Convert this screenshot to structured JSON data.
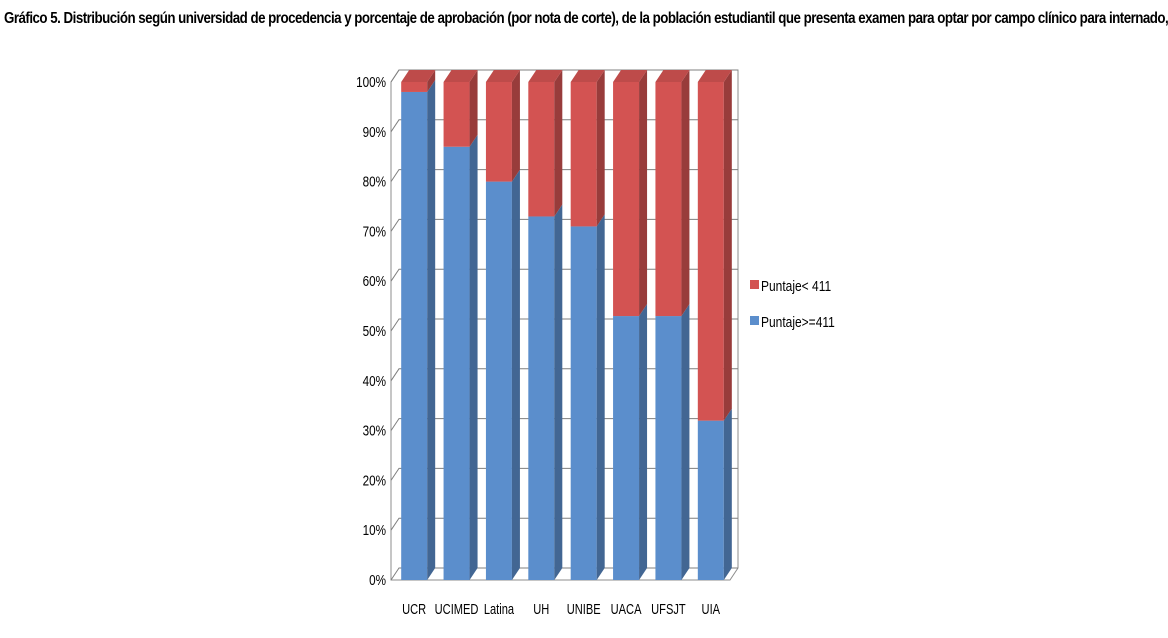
{
  "chart_data": {
    "type": "bar",
    "stacked": true,
    "percent_stacked": true,
    "three_d": true,
    "title": "Gráfico 5. Distribución según universidad de procedencia y porcentaje de aprobación (por nota de corte), de la población estudiantil que presenta examen para optar por campo clínico para internado,",
    "categories": [
      "UCR",
      "UCIMED",
      "Latina",
      "UH",
      "UNIBE",
      "UACA",
      "UFSJT",
      "UIA"
    ],
    "series": [
      {
        "name": "Puntaje>=411",
        "color": "#5B8ECC",
        "values": [
          98,
          87,
          80,
          73,
          71,
          53,
          53,
          32
        ]
      },
      {
        "name": "Puntaje< 411",
        "color": "#D35352",
        "values": [
          2,
          13,
          20,
          27,
          29,
          47,
          47,
          68
        ]
      }
    ],
    "y_tick_labels": [
      "0%",
      "10%",
      "20%",
      "30%",
      "40%",
      "50%",
      "60%",
      "70%",
      "80%",
      "90%",
      "100%"
    ],
    "ylim": [
      0,
      100
    ],
    "xlabel": "",
    "ylabel": "",
    "grid": true,
    "legend_position": "right"
  }
}
